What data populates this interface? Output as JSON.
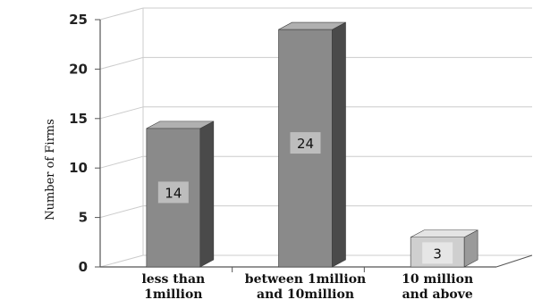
{
  "chart_data": {
    "type": "bar",
    "categories": [
      [
        "less than",
        "1million"
      ],
      [
        "between 1million",
        "and 10million"
      ],
      [
        "10 million",
        "and above"
      ]
    ],
    "values": [
      14,
      24,
      3
    ],
    "data_labels": [
      "14",
      "24",
      "3"
    ],
    "ylabel": "Number of Firms",
    "ylim": [
      0,
      25
    ],
    "yticks": [
      "0",
      "5",
      "10",
      "15",
      "20",
      "25"
    ],
    "grid": true,
    "style": "3d-column",
    "colors": {
      "bar_front": "#8a8a8a",
      "bar_side": "#4a4a4a",
      "bar_top": "#b0b0b0",
      "bar_small_front": "#cfcfcf",
      "bar_small_side": "#9a9a9a",
      "bar_small_top": "#e4e4e4",
      "label_box": "#bdbdbd",
      "label_box_light": "#e6e6e6",
      "grid": "#cccccc",
      "axis": "#555555"
    }
  }
}
